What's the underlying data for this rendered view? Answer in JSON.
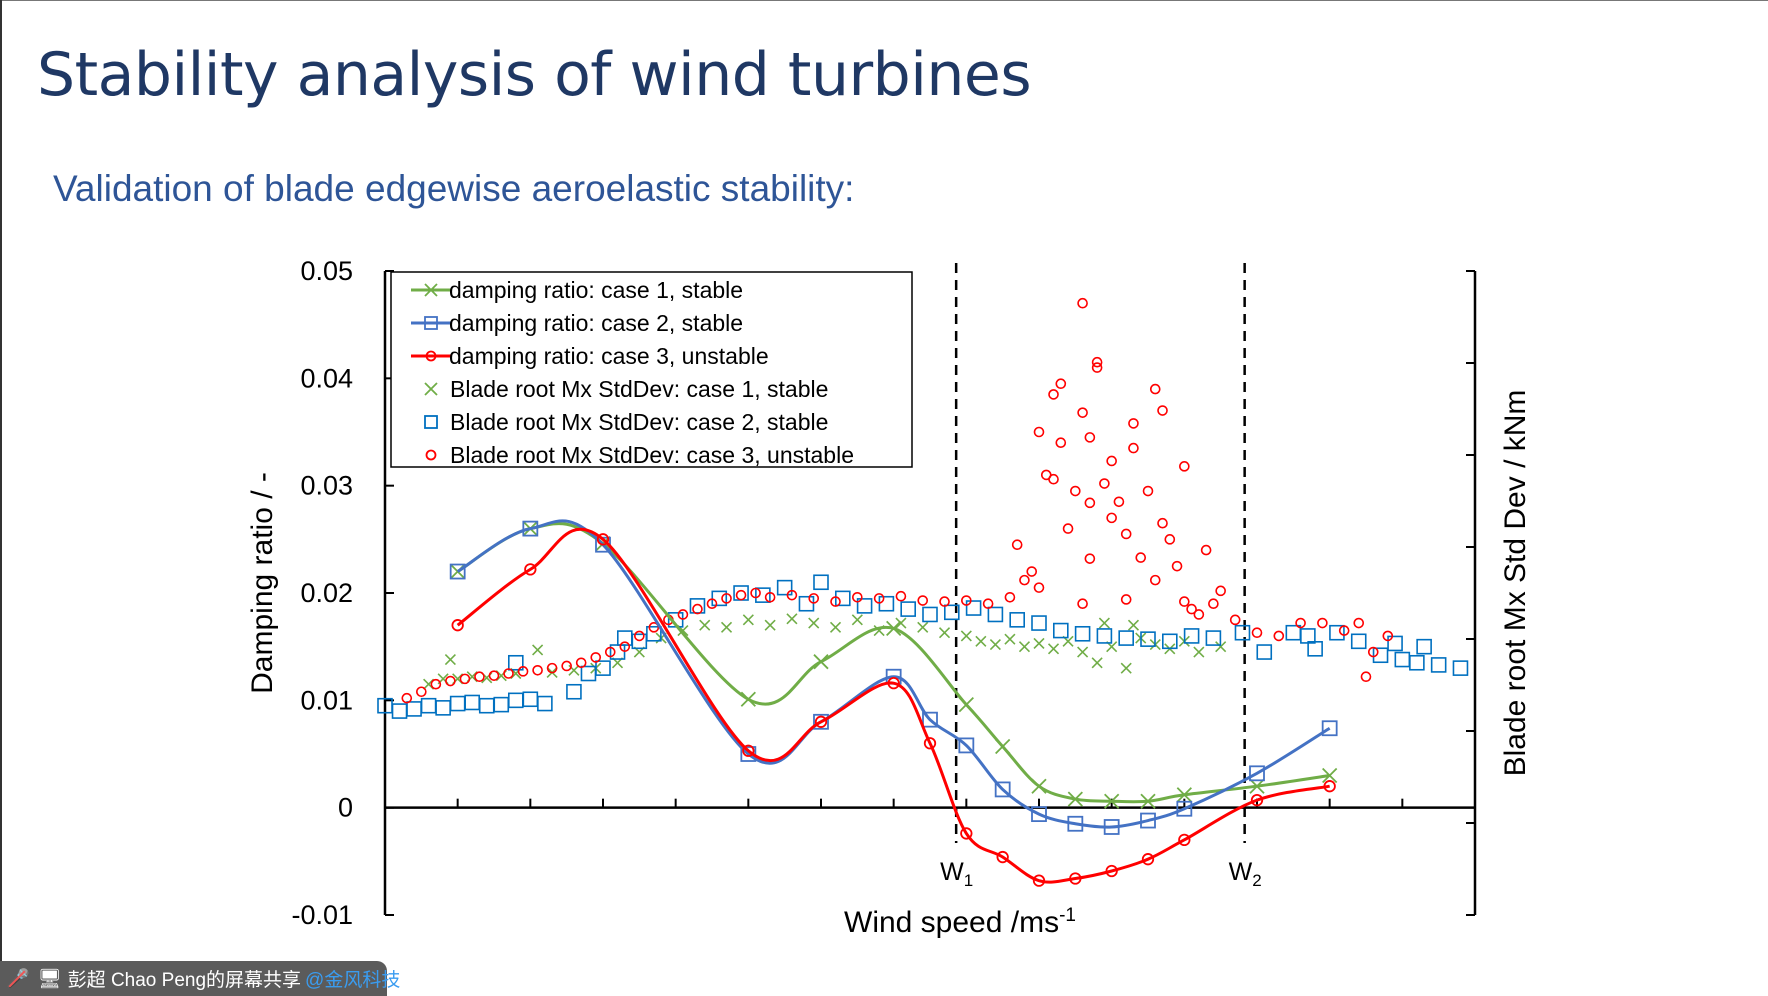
{
  "slide": {
    "title": "Stability analysis of wind turbines",
    "subtitle": "Validation of blade edgewise aeroelastic stability:"
  },
  "share_bar": {
    "mic_icon": "mic-muted-icon",
    "screen_icon": "screen-share-icon",
    "presenter": "彭超 Chao Peng的屏幕共享",
    "org": "@金风科技"
  },
  "chart_data": {
    "type": "line",
    "title": "",
    "xlabel": "Wind speed /ms",
    "xlabel_sup": "-1",
    "ylabel": "Damping ratio / -",
    "y2label": "Blade root Mx Std Dev / kNm",
    "xlim": [
      0,
      15
    ],
    "ylim": [
      -0.01,
      0.05
    ],
    "yticks": [
      "0.05",
      "0.04",
      "0.03",
      "0.02",
      "0.01",
      "0",
      "-0.01"
    ],
    "ytick_values": [
      0.05,
      0.04,
      0.03,
      0.02,
      0.01,
      0,
      -0.01
    ],
    "xtick_labels_shown": false,
    "y2_tick_labels_shown": false,
    "legend_position": "top-left",
    "grid": false,
    "vlines": [
      {
        "label": "W",
        "sub": "1",
        "x": 7.86
      },
      {
        "label": "W",
        "sub": "2",
        "x": 11.83
      }
    ],
    "series": [
      {
        "name": "damping ratio: case 1, stable",
        "kind": "line",
        "marker": "x",
        "color": "#70AD47",
        "points": [
          [
            1,
            0.022
          ],
          [
            2,
            0.026
          ],
          [
            3,
            0.0246
          ],
          [
            5,
            0.0101
          ],
          [
            6,
            0.0136
          ],
          [
            7,
            0.0167
          ],
          [
            8,
            0.0096
          ],
          [
            8.5,
            0.0057
          ],
          [
            9,
            0.002
          ],
          [
            9.5,
            0.0008
          ],
          [
            10,
            0.0006
          ],
          [
            10.5,
            0.0006
          ],
          [
            11,
            0.0012
          ],
          [
            12,
            0.002
          ],
          [
            13,
            0.003
          ]
        ]
      },
      {
        "name": "damping ratio: case 2, stable",
        "kind": "line",
        "marker": "square",
        "color": "#4472C4",
        "points": [
          [
            1,
            0.022
          ],
          [
            2,
            0.026
          ],
          [
            3,
            0.0245
          ],
          [
            5,
            0.005
          ],
          [
            6,
            0.008
          ],
          [
            7,
            0.0122
          ],
          [
            7.5,
            0.0082
          ],
          [
            8,
            0.0058
          ],
          [
            8.5,
            0.0017
          ],
          [
            9,
            -0.0006
          ],
          [
            9.5,
            -0.0015
          ],
          [
            10,
            -0.0018
          ],
          [
            10.5,
            -0.0012
          ],
          [
            11,
            -0.0001
          ],
          [
            12,
            0.0032
          ],
          [
            13,
            0.0074
          ]
        ]
      },
      {
        "name": "damping ratio: case 3, unstable",
        "kind": "line",
        "marker": "circle",
        "color": "#FF0000",
        "points": [
          [
            1,
            0.017
          ],
          [
            2,
            0.0222
          ],
          [
            3,
            0.025
          ],
          [
            5,
            0.0053
          ],
          [
            6,
            0.008
          ],
          [
            7,
            0.0116
          ],
          [
            7.5,
            0.006
          ],
          [
            8,
            -0.0024
          ],
          [
            8.5,
            -0.0046
          ],
          [
            9,
            -0.0068
          ],
          [
            9.5,
            -0.0066
          ],
          [
            10,
            -0.0059
          ],
          [
            10.5,
            -0.0048
          ],
          [
            11,
            -0.003
          ],
          [
            12,
            0.0007
          ],
          [
            13,
            0.002
          ]
        ]
      },
      {
        "name": "Blade root Mx StdDev: case 1, stable",
        "kind": "scatter",
        "marker": "x",
        "color": "#70AD47",
        "points": [
          [
            0.6,
            0.0115
          ],
          [
            0.8,
            0.012
          ],
          [
            0.9,
            0.0138
          ],
          [
            1.0,
            0.012
          ],
          [
            1.2,
            0.0122
          ],
          [
            1.4,
            0.0121
          ],
          [
            1.6,
            0.0123
          ],
          [
            1.8,
            0.0125
          ],
          [
            2.1,
            0.0147
          ],
          [
            2.3,
            0.0126
          ],
          [
            2.6,
            0.0128
          ],
          [
            2.9,
            0.013
          ],
          [
            3.2,
            0.0135
          ],
          [
            3.5,
            0.0145
          ],
          [
            3.8,
            0.0158
          ],
          [
            4.1,
            0.0165
          ],
          [
            4.4,
            0.017
          ],
          [
            4.7,
            0.0168
          ],
          [
            5.0,
            0.0175
          ],
          [
            5.3,
            0.017
          ],
          [
            5.6,
            0.0176
          ],
          [
            5.9,
            0.0172
          ],
          [
            6.2,
            0.0168
          ],
          [
            6.5,
            0.0175
          ],
          [
            6.8,
            0.0165
          ],
          [
            7.1,
            0.0172
          ],
          [
            7.4,
            0.0168
          ],
          [
            7.7,
            0.0163
          ],
          [
            8.0,
            0.016
          ],
          [
            8.2,
            0.0155
          ],
          [
            8.4,
            0.0152
          ],
          [
            8.6,
            0.0157
          ],
          [
            8.8,
            0.015
          ],
          [
            9.0,
            0.0153
          ],
          [
            9.2,
            0.0148
          ],
          [
            9.4,
            0.0155
          ],
          [
            9.6,
            0.0145
          ],
          [
            9.8,
            0.0135
          ],
          [
            10.0,
            0.015
          ],
          [
            10.2,
            0.013
          ],
          [
            10.4,
            0.0158
          ],
          [
            10.6,
            0.0152
          ],
          [
            10.8,
            0.0148
          ],
          [
            11.0,
            0.0155
          ],
          [
            11.2,
            0.0145
          ],
          [
            11.5,
            0.015
          ],
          [
            9.9,
            0.0172
          ],
          [
            10.3,
            0.017
          ]
        ]
      },
      {
        "name": "Blade root Mx StdDev: case 2, stable",
        "kind": "scatter",
        "marker": "square",
        "color": "#0070C0",
        "points": [
          [
            0.0,
            0.0095
          ],
          [
            0.2,
            0.009
          ],
          [
            0.4,
            0.0092
          ],
          [
            0.6,
            0.0095
          ],
          [
            0.8,
            0.0093
          ],
          [
            1.0,
            0.0097
          ],
          [
            1.2,
            0.0098
          ],
          [
            1.4,
            0.0095
          ],
          [
            1.6,
            0.0096
          ],
          [
            1.8,
            0.01
          ],
          [
            2.0,
            0.0101
          ],
          [
            2.2,
            0.0097
          ],
          [
            1.8,
            0.0135
          ],
          [
            2.6,
            0.0108
          ],
          [
            2.8,
            0.0125
          ],
          [
            3.0,
            0.013
          ],
          [
            3.2,
            0.0145
          ],
          [
            3.3,
            0.0158
          ],
          [
            3.5,
            0.0155
          ],
          [
            3.7,
            0.0162
          ],
          [
            4.0,
            0.0175
          ],
          [
            4.3,
            0.0188
          ],
          [
            4.6,
            0.0195
          ],
          [
            4.9,
            0.02
          ],
          [
            5.2,
            0.0198
          ],
          [
            5.5,
            0.0205
          ],
          [
            5.8,
            0.019
          ],
          [
            6.0,
            0.021
          ],
          [
            6.3,
            0.0195
          ],
          [
            6.6,
            0.0188
          ],
          [
            6.9,
            0.019
          ],
          [
            7.2,
            0.0185
          ],
          [
            7.5,
            0.018
          ],
          [
            7.8,
            0.0182
          ],
          [
            8.1,
            0.0186
          ],
          [
            8.4,
            0.018
          ],
          [
            8.7,
            0.0175
          ],
          [
            9.0,
            0.0172
          ],
          [
            9.3,
            0.0165
          ],
          [
            9.6,
            0.0162
          ],
          [
            9.9,
            0.016
          ],
          [
            10.2,
            0.0158
          ],
          [
            10.5,
            0.0157
          ],
          [
            10.8,
            0.0155
          ],
          [
            11.1,
            0.016
          ],
          [
            11.4,
            0.0158
          ],
          [
            11.8,
            0.0163
          ],
          [
            12.1,
            0.0145
          ],
          [
            12.5,
            0.0163
          ],
          [
            12.8,
            0.0148
          ],
          [
            13.1,
            0.0163
          ],
          [
            13.4,
            0.0155
          ],
          [
            13.7,
            0.0142
          ],
          [
            14.0,
            0.0138
          ],
          [
            14.2,
            0.0135
          ],
          [
            14.5,
            0.0133
          ],
          [
            14.8,
            0.013
          ],
          [
            12.7,
            0.016
          ],
          [
            13.9,
            0.0153
          ],
          [
            14.3,
            0.015
          ]
        ]
      },
      {
        "name": "Blade root Mx StdDev: case 3, unstable",
        "kind": "scatter",
        "marker": "circle",
        "color": "#FF0000",
        "points": [
          [
            0.3,
            0.0102
          ],
          [
            0.5,
            0.0108
          ],
          [
            0.7,
            0.0115
          ],
          [
            0.9,
            0.0118
          ],
          [
            1.1,
            0.012
          ],
          [
            1.3,
            0.0122
          ],
          [
            1.5,
            0.0123
          ],
          [
            1.7,
            0.0125
          ],
          [
            1.9,
            0.0127
          ],
          [
            2.1,
            0.0128
          ],
          [
            2.3,
            0.013
          ],
          [
            2.5,
            0.0132
          ],
          [
            2.7,
            0.0135
          ],
          [
            2.9,
            0.014
          ],
          [
            3.1,
            0.0145
          ],
          [
            3.3,
            0.015
          ],
          [
            3.5,
            0.016
          ],
          [
            3.7,
            0.0168
          ],
          [
            3.9,
            0.0175
          ],
          [
            4.1,
            0.018
          ],
          [
            4.3,
            0.0185
          ],
          [
            4.5,
            0.019
          ],
          [
            4.7,
            0.0195
          ],
          [
            4.9,
            0.0198
          ],
          [
            5.1,
            0.02
          ],
          [
            5.3,
            0.0196
          ],
          [
            5.6,
            0.0198
          ],
          [
            5.9,
            0.0195
          ],
          [
            6.2,
            0.0192
          ],
          [
            6.5,
            0.0196
          ],
          [
            6.8,
            0.0195
          ],
          [
            7.1,
            0.0197
          ],
          [
            7.4,
            0.0193
          ],
          [
            7.7,
            0.0192
          ],
          [
            8.0,
            0.0193
          ],
          [
            8.3,
            0.019
          ],
          [
            8.6,
            0.0196
          ],
          [
            8.7,
            0.0245
          ],
          [
            8.9,
            0.022
          ],
          [
            9.0,
            0.035
          ],
          [
            9.1,
            0.031
          ],
          [
            9.2,
            0.0385
          ],
          [
            9.3,
            0.0395
          ],
          [
            9.3,
            0.034
          ],
          [
            9.2,
            0.0306
          ],
          [
            9.4,
            0.026
          ],
          [
            9.5,
            0.0295
          ],
          [
            9.6,
            0.047
          ],
          [
            9.6,
            0.0368
          ],
          [
            9.7,
            0.0345
          ],
          [
            9.7,
            0.0284
          ],
          [
            9.7,
            0.0232
          ],
          [
            9.8,
            0.041
          ],
          [
            9.8,
            0.0415
          ],
          [
            9.9,
            0.0302
          ],
          [
            10.0,
            0.027
          ],
          [
            10.0,
            0.0323
          ],
          [
            10.1,
            0.0285
          ],
          [
            10.2,
            0.0255
          ],
          [
            10.3,
            0.0358
          ],
          [
            10.3,
            0.0335
          ],
          [
            10.4,
            0.0233
          ],
          [
            10.5,
            0.0295
          ],
          [
            10.6,
            0.039
          ],
          [
            10.7,
            0.037
          ],
          [
            10.6,
            0.0212
          ],
          [
            10.7,
            0.0265
          ],
          [
            10.8,
            0.025
          ],
          [
            10.9,
            0.0225
          ],
          [
            11.0,
            0.0318
          ],
          [
            11.1,
            0.0185
          ],
          [
            11.3,
            0.024
          ],
          [
            11.5,
            0.0202
          ],
          [
            11.0,
            0.0192
          ],
          [
            11.2,
            0.018
          ],
          [
            11.4,
            0.019
          ],
          [
            11.7,
            0.0175
          ],
          [
            12.0,
            0.0163
          ],
          [
            12.3,
            0.016
          ],
          [
            12.6,
            0.0172
          ],
          [
            12.9,
            0.0172
          ],
          [
            13.2,
            0.0165
          ],
          [
            13.4,
            0.0172
          ],
          [
            13.6,
            0.0145
          ],
          [
            13.8,
            0.016
          ],
          [
            13.5,
            0.0122
          ],
          [
            9.0,
            0.0205
          ],
          [
            9.6,
            0.019
          ],
          [
            10.2,
            0.0194
          ],
          [
            8.8,
            0.0212
          ]
        ]
      }
    ]
  }
}
